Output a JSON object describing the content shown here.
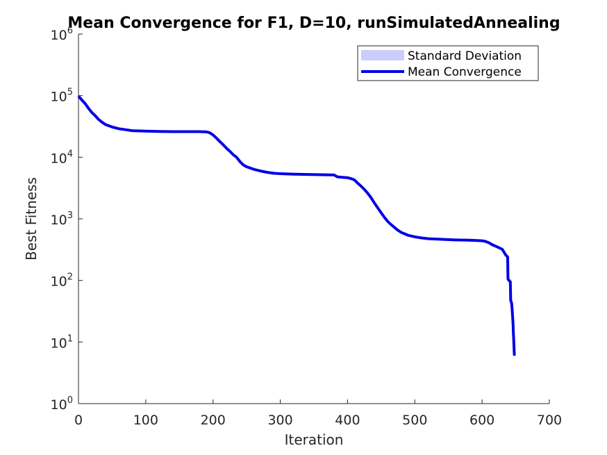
{
  "chart_data": {
    "type": "line",
    "title": "Mean Convergence for F1, D=10, runSimulatedAnnealing",
    "xlabel": "Iteration",
    "ylabel": "Best Fitness",
    "xlim": [
      0,
      700
    ],
    "ylim": [
      1,
      1000000
    ],
    "yscale": "log",
    "grid": false,
    "legend_position": "top-right",
    "x_ticks": [
      "0",
      "100",
      "200",
      "300",
      "400",
      "500",
      "600",
      "700"
    ],
    "x_tick_values": [
      0,
      100,
      200,
      300,
      400,
      500,
      600,
      700
    ],
    "y_ticks": [
      {
        "base": "10",
        "exp": "0"
      },
      {
        "base": "10",
        "exp": "1"
      },
      {
        "base": "10",
        "exp": "2"
      },
      {
        "base": "10",
        "exp": "3"
      },
      {
        "base": "10",
        "exp": "4"
      },
      {
        "base": "10",
        "exp": "5"
      },
      {
        "base": "10",
        "exp": "6"
      }
    ],
    "y_tick_values": [
      1,
      10,
      100,
      1000,
      10000,
      100000,
      1000000
    ],
    "series": [
      {
        "name": "Standard Deviation",
        "kind": "band",
        "color": "#ccccff",
        "x": [],
        "lower": [],
        "upper": []
      },
      {
        "name": "Mean Convergence",
        "kind": "line",
        "color": "#0000e6",
        "x": [
          0,
          5,
          10,
          15,
          20,
          25,
          30,
          35,
          40,
          50,
          60,
          70,
          80,
          100,
          120,
          140,
          160,
          180,
          190,
          195,
          200,
          205,
          210,
          215,
          220,
          225,
          230,
          235,
          240,
          245,
          250,
          260,
          270,
          280,
          290,
          300,
          320,
          340,
          360,
          380,
          385,
          400,
          405,
          410,
          415,
          420,
          425,
          430,
          435,
          440,
          445,
          450,
          455,
          460,
          465,
          470,
          475,
          480,
          485,
          490,
          500,
          510,
          520,
          540,
          560,
          580,
          590,
          600,
          605,
          610,
          615,
          620,
          625,
          630,
          635,
          638,
          638.5,
          640,
          642,
          642.5,
          644,
          644.5,
          645,
          646,
          646.5,
          647,
          647.5,
          648
        ],
        "y": [
          98000,
          85000,
          74000,
          62000,
          53000,
          47000,
          41000,
          37000,
          34000,
          31000,
          29000,
          28000,
          27000,
          26500,
          26200,
          26000,
          26000,
          26000,
          25800,
          25000,
          23000,
          20500,
          18000,
          16000,
          14000,
          12500,
          11000,
          10000,
          8500,
          7500,
          7000,
          6400,
          6000,
          5700,
          5500,
          5400,
          5300,
          5250,
          5200,
          5150,
          4800,
          4650,
          4500,
          4300,
          3800,
          3400,
          3000,
          2600,
          2200,
          1800,
          1500,
          1250,
          1050,
          900,
          800,
          720,
          650,
          600,
          570,
          540,
          510,
          490,
          475,
          465,
          455,
          450,
          445,
          440,
          430,
          410,
          380,
          360,
          340,
          320,
          260,
          240,
          105,
          100,
          95,
          48,
          42,
          36,
          30,
          20,
          14,
          11,
          8,
          6
        ]
      }
    ]
  }
}
